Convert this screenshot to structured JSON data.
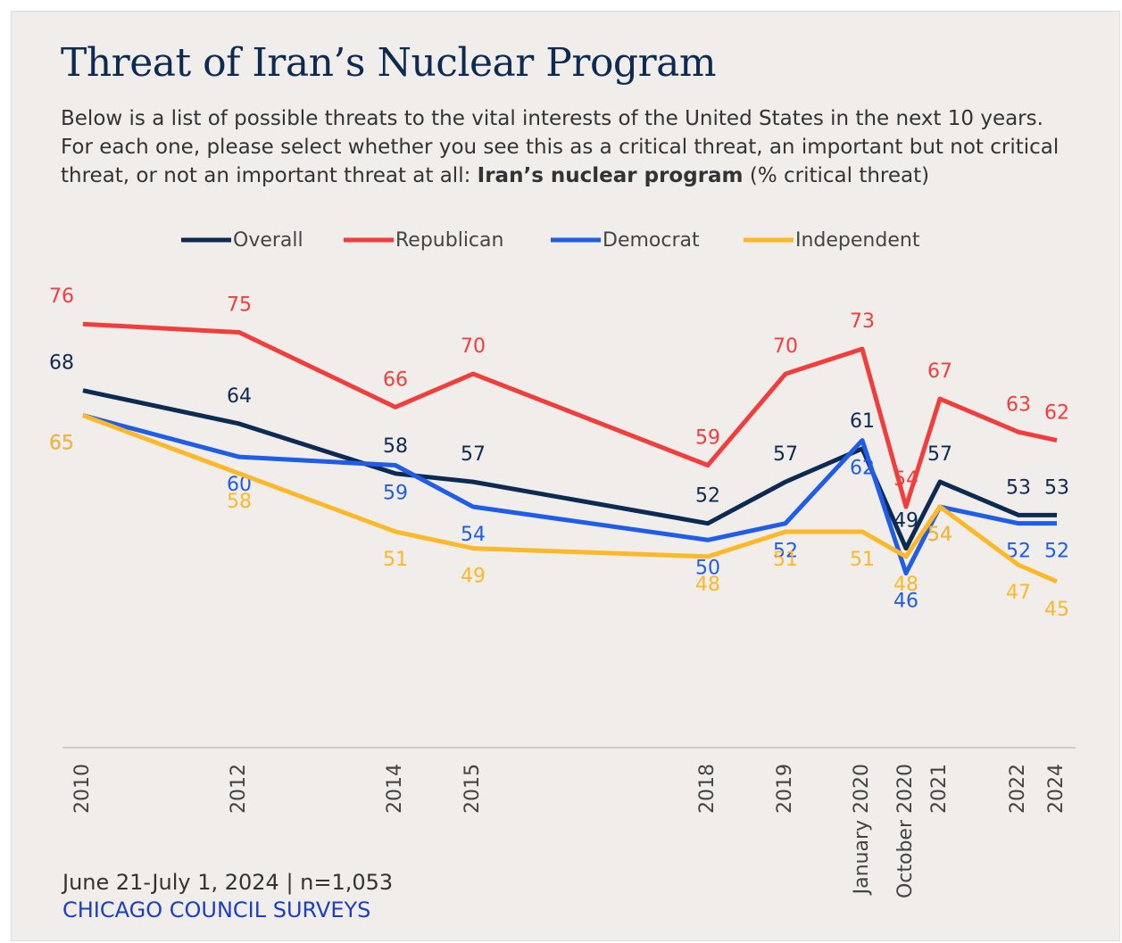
{
  "chart_data": {
    "type": "line",
    "title": "Threat of Iran’s Nuclear Program",
    "subtitle": [
      "Below is a list of possible threats to the vital interests of the United States in the next 10 years. For each one, please select whether you see this as a critical threat, an important but not critical threat, or not an important threat at all: ",
      "Iran’s nuclear program",
      " (% critical threat)"
    ],
    "categories": [
      "2010",
      "2012",
      "2014",
      "2015",
      "2018",
      "2019",
      "January 2020",
      "October 2020",
      "2021",
      "2022",
      "2024"
    ],
    "series": [
      {
        "name": "Overall",
        "color": "#0d2a52",
        "values": [
          68,
          64,
          58,
          57,
          52,
          57,
          61,
          49,
          57,
          53,
          53
        ]
      },
      {
        "name": "Republican",
        "color": "#f23d3d",
        "values": [
          76,
          75,
          66,
          70,
          59,
          70,
          73,
          54,
          67,
          63,
          62
        ]
      },
      {
        "name": "Democrat",
        "color": "#1f5ce8",
        "values": [
          65,
          60,
          59,
          54,
          50,
          52,
          62,
          46,
          54,
          52,
          52
        ]
      },
      {
        "name": "Independent",
        "color": "#fbb829",
        "values": [
          65,
          58,
          51,
          49,
          48,
          51,
          51,
          48,
          54,
          47,
          45
        ]
      }
    ],
    "ylim": [
      25,
      80
    ],
    "source": "June 21-July 1, 2024 | n=1,053",
    "publisher": "CHICAGO COUNCIL SURVEYS"
  }
}
